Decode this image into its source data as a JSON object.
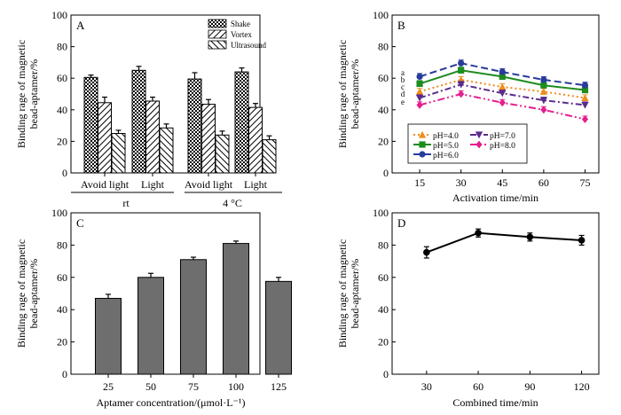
{
  "colors": {
    "ph4": "#f08c1e",
    "ph5": "#1e8c1e",
    "ph6": "#283c9a",
    "ph7": "#5a2c8c",
    "ph8": "#e61e8c",
    "bar_fill": "#6e6e6e"
  },
  "chart_data": [
    {
      "panel": "A",
      "type": "bar",
      "ylabel_line1": "Binding rage of magnetic",
      "ylabel_line2": "bead-aptamer/%",
      "ylim": [
        0,
        100
      ],
      "yticks": [
        "0",
        "20",
        "40",
        "60",
        "80",
        "100"
      ],
      "categories": [
        "Avoid light",
        "Light",
        "Avoid light",
        "Light"
      ],
      "groups": [
        "rt",
        "4 °C"
      ],
      "series": [
        {
          "name": "Shake",
          "pattern": "checker",
          "values": [
            60.5,
            65,
            59.5,
            64
          ],
          "errors": [
            1.5,
            2.5,
            4,
            2.5
          ]
        },
        {
          "name": "Vortex",
          "pattern": "hatch-right",
          "values": [
            44.5,
            45.5,
            43.5,
            41.5
          ],
          "errors": [
            3.5,
            2.5,
            3,
            2.5
          ]
        },
        {
          "name": "Ultrasound",
          "pattern": "hatch-left",
          "values": [
            25,
            28.5,
            24,
            21
          ],
          "errors": [
            2,
            2.5,
            2.5,
            2.5
          ]
        }
      ]
    },
    {
      "panel": "B",
      "type": "line",
      "xlabel": "Activation time/min",
      "ylabel_line1": "Binding rage of magnetic",
      "ylabel_line2": "bead-aptamer/%",
      "ylim": [
        0,
        100
      ],
      "xlim": [
        5,
        80
      ],
      "x": [
        15,
        30,
        45,
        60,
        75
      ],
      "yticks": [
        "0",
        "20",
        "40",
        "60",
        "80",
        "100"
      ],
      "xticks": [
        "15",
        "30",
        "45",
        "60",
        "75"
      ],
      "series": [
        {
          "name": "pH=4.0",
          "tag": "c",
          "values": [
            51.5,
            59,
            54.5,
            51.5,
            47.5
          ],
          "errors": [
            2,
            2,
            2,
            2,
            2
          ],
          "marker": "triangle-up",
          "dash": "2,3",
          "color_key": "ph4"
        },
        {
          "name": "pH=5.0",
          "tag": "b",
          "values": [
            56.5,
            65,
            61,
            55.5,
            52.5
          ],
          "errors": [
            2,
            2,
            2,
            2,
            2
          ],
          "marker": "square",
          "dash": "",
          "color_key": "ph5"
        },
        {
          "name": "pH=6.0",
          "tag": "a",
          "values": [
            61,
            69.5,
            64,
            59,
            55.5
          ],
          "errors": [
            2,
            2,
            2,
            2,
            2
          ],
          "marker": "circle",
          "dash": "8,4",
          "color_key": "ph6"
        },
        {
          "name": "pH=7.0",
          "tag": "d",
          "values": [
            47.5,
            56,
            50.5,
            46,
            43
          ],
          "errors": [
            2,
            2,
            2,
            2,
            2
          ],
          "marker": "triangle-down",
          "dash": "7,3,2,3",
          "color_key": "ph7"
        },
        {
          "name": "pH=8.0",
          "tag": "e",
          "values": [
            43,
            50,
            44.5,
            40,
            34
          ],
          "errors": [
            2,
            2,
            2,
            2,
            2
          ],
          "marker": "diamond",
          "dash": "8,3,2,3,2,3",
          "color_key": "ph8"
        }
      ]
    },
    {
      "panel": "C",
      "type": "bar",
      "xlabel": "Aptamer concentration/(μmol·L⁻¹)",
      "ylabel_line1": "Binding rage of magnetic",
      "ylabel_line2": "bead-aptamer/%",
      "ylim": [
        0,
        100
      ],
      "yticks": [
        "0",
        "20",
        "40",
        "60",
        "80",
        "100"
      ],
      "categories": [
        "25",
        "50",
        "75",
        "100",
        "125"
      ],
      "values": [
        47,
        60,
        71,
        81,
        57.5
      ],
      "errors": [
        2.5,
        2.5,
        1.5,
        1.5,
        2.5
      ]
    },
    {
      "panel": "D",
      "type": "line",
      "xlabel": "Combined time/min",
      "ylabel_line1": "Binding rage of magnetic",
      "ylabel_line2": "bead-aptamer/%",
      "ylim": [
        0,
        100
      ],
      "xlim": [
        10,
        130
      ],
      "x": [
        30,
        60,
        90,
        120
      ],
      "yticks": [
        "0",
        "20",
        "40",
        "60",
        "80",
        "100"
      ],
      "xticks": [
        "30",
        "60",
        "90",
        "120"
      ],
      "values": [
        75.5,
        87.5,
        85,
        83
      ],
      "errors": [
        3.5,
        2.5,
        2.5,
        3
      ]
    }
  ]
}
